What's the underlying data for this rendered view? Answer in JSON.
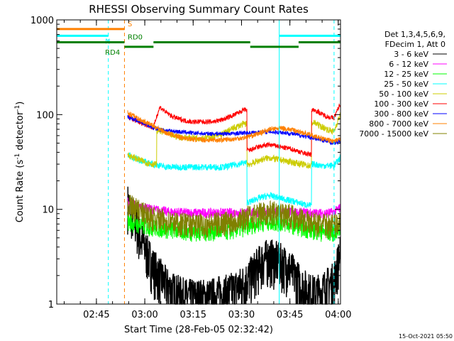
{
  "chart_data": {
    "type": "line",
    "title": "RHESSI Observing Summary Count Rates",
    "xlabel": "Start Time (28-Feb-05 02:32:42)",
    "ylabel_main": "Count Rate (s",
    "ylabel_sup1": "-1",
    "ylabel_mid": " detector",
    "ylabel_sup2": "-1",
    "ylabel_end": ")",
    "yscale": "log",
    "ylim": [
      1,
      1000
    ],
    "xlim_minutes": [
      0,
      88
    ],
    "x_unit": "minutes after 02:32:42",
    "x_ticks": [
      {
        "label": "02:45",
        "value": 12.3
      },
      {
        "label": "03:00",
        "value": 27.3
      },
      {
        "label": "03:15",
        "value": 42.3
      },
      {
        "label": "03:30",
        "value": 57.3
      },
      {
        "label": "03:45",
        "value": 72.3
      },
      {
        "label": "04:00",
        "value": 87.3
      }
    ],
    "y_ticks": [
      {
        "label": "1",
        "value": 1
      },
      {
        "label": "10",
        "value": 10
      },
      {
        "label": "100",
        "value": 100
      },
      {
        "label": "1000",
        "value": 1000
      }
    ],
    "legend_header": [
      "Det 1,3,4,5,6,9,",
      "FDecim 1, Att 0"
    ],
    "series": [
      {
        "name": "3 - 6 keV",
        "color": "#000000",
        "x": [
          22,
          24,
          26,
          28,
          30,
          32,
          34,
          36,
          38,
          40,
          42,
          44,
          46,
          48,
          50,
          52,
          54,
          56,
          58,
          60,
          62,
          64,
          66,
          68,
          70,
          72,
          74,
          76,
          78,
          80,
          82,
          84,
          86,
          88
        ],
        "values": [
          12,
          8,
          5,
          3.5,
          2.5,
          2,
          1.6,
          1.4,
          1.3,
          1.2,
          1.2,
          1.2,
          1.2,
          1.2,
          1.3,
          1.3,
          1.4,
          1.5,
          1.7,
          2.0,
          2.5,
          3.0,
          3.2,
          3.0,
          2.8,
          2.5,
          2.0,
          1.6,
          1.4,
          1.3,
          1.4,
          1.6,
          1.8,
          3.5
        ]
      },
      {
        "name": "6 - 12 keV",
        "color": "#ff00ff",
        "x": [
          22,
          26,
          30,
          34,
          38,
          42,
          46,
          50,
          54,
          58,
          62,
          66,
          70,
          74,
          78,
          82,
          86,
          88
        ],
        "values": [
          12,
          10.5,
          10.0,
          9.5,
          9.3,
          9.2,
          9.2,
          9.2,
          9.2,
          9.3,
          9.3,
          9.4,
          9.4,
          9.3,
          9.2,
          9.1,
          9.3,
          10.5
        ]
      },
      {
        "name": "12 - 25 keV",
        "color": "#00ff00",
        "x": [
          22,
          26,
          30,
          34,
          38,
          42,
          46,
          50,
          54,
          58,
          62,
          66,
          70,
          74,
          78,
          82,
          86,
          88
        ],
        "values": [
          7.5,
          6.8,
          6.5,
          6.2,
          6.0,
          5.8,
          5.8,
          5.9,
          6.0,
          6.5,
          7.2,
          7.5,
          7.3,
          6.8,
          6.2,
          5.8,
          5.8,
          6.2
        ]
      },
      {
        "name": "25 - 50 keV",
        "color": "#00ffff",
        "x": [
          22,
          24,
          26,
          28,
          30,
          32,
          34,
          36,
          38,
          40,
          42,
          44,
          46,
          48,
          50,
          52,
          54,
          56,
          58,
          60,
          62,
          64,
          66,
          68,
          70,
          72,
          74,
          76,
          78,
          80,
          82,
          84,
          86,
          88
        ],
        "values": [
          38,
          35,
          33,
          31,
          30,
          29,
          28,
          28,
          28,
          28,
          28,
          28,
          28,
          28,
          28,
          28,
          29,
          30,
          31,
          12,
          13,
          13.5,
          14,
          13.5,
          13,
          12.5,
          12,
          11.5,
          11,
          30,
          29,
          29,
          29,
          35
        ]
      },
      {
        "name": "50 - 100 keV",
        "color": "#cccc00",
        "x": [
          22,
          24,
          26,
          28,
          30,
          32,
          34,
          36,
          38,
          40,
          42,
          44,
          46,
          48,
          50,
          52,
          54,
          56,
          58,
          60,
          62,
          64,
          66,
          68,
          70,
          72,
          74,
          76,
          78,
          80,
          82,
          84,
          86,
          88
        ],
        "values": [
          38,
          35,
          33,
          31,
          30,
          68,
          64,
          60,
          58,
          57,
          57,
          57,
          57,
          58,
          60,
          64,
          70,
          75,
          80,
          30,
          32,
          34,
          35,
          34,
          33,
          32,
          31,
          30,
          29,
          82,
          75,
          70,
          66,
          100
        ]
      },
      {
        "name": "100 - 300 keV",
        "color": "#ff0000",
        "x": [
          22,
          24,
          26,
          28,
          30,
          32,
          34,
          36,
          38,
          40,
          42,
          44,
          46,
          48,
          50,
          52,
          54,
          56,
          58,
          60,
          62,
          64,
          66,
          68,
          70,
          72,
          74,
          76,
          78,
          80,
          82,
          84,
          86,
          88
        ],
        "values": [
          95,
          88,
          82,
          78,
          72,
          120,
          105,
          95,
          90,
          86,
          84,
          84,
          84,
          84,
          86,
          90,
          96,
          103,
          112,
          42,
          45,
          47,
          48,
          47,
          45,
          44,
          42,
          40,
          38,
          112,
          102,
          95,
          92,
          130
        ]
      },
      {
        "name": "300 - 800 keV",
        "color": "#0000ff",
        "x": [
          22,
          26,
          30,
          34,
          38,
          42,
          46,
          50,
          54,
          58,
          62,
          66,
          70,
          74,
          78,
          82,
          86,
          88
        ],
        "values": [
          95,
          84,
          72,
          68,
          66,
          64,
          63,
          63,
          63,
          64,
          65,
          66,
          65,
          62,
          58,
          54,
          50,
          52
        ]
      },
      {
        "name": "800 - 7000 keV",
        "color": "#ff8000",
        "x": [
          22,
          26,
          30,
          34,
          38,
          42,
          46,
          50,
          54,
          58,
          62,
          66,
          70,
          74,
          78,
          82,
          86,
          88
        ],
        "values": [
          105,
          88,
          76,
          64,
          58,
          55,
          54,
          54,
          55,
          57,
          62,
          70,
          72,
          68,
          62,
          56,
          52,
          55
        ]
      },
      {
        "name": "7000 - 15000 keV",
        "color": "#808000",
        "x": [
          22,
          26,
          30,
          34,
          38,
          42,
          46,
          50,
          54,
          58,
          62,
          66,
          70,
          74,
          78,
          82,
          86,
          88
        ],
        "values": [
          11.5,
          9.5,
          8.2,
          7.6,
          7.2,
          7.0,
          7.0,
          7.2,
          7.6,
          8.2,
          9.0,
          9.5,
          9.2,
          8.5,
          7.5,
          7.0,
          7.0,
          7.5
        ]
      }
    ],
    "event_lines": [
      {
        "x": 0,
        "color": "#00ffff",
        "style": "solid"
      },
      {
        "x": 16,
        "color": "#00ffff",
        "style": "dashed"
      },
      {
        "x": 21,
        "color": "#ff8000",
        "style": "dashed"
      },
      {
        "x": 69,
        "color": "#00ffff",
        "style": "solid"
      },
      {
        "x": 86,
        "color": "#00ffff",
        "style": "dashed"
      }
    ],
    "state_bars": [
      {
        "name": "S",
        "color": "#ff8000",
        "y": 800,
        "segments": [
          [
            0,
            21
          ]
        ],
        "label": "S",
        "label_x": 22
      },
      {
        "name": "N",
        "color": "#00ffff",
        "y": 680,
        "segments": [
          [
            0,
            16
          ],
          [
            69,
            88
          ]
        ],
        "label": "N",
        "label_x": 15
      },
      {
        "name": "RD0",
        "color": "#008000",
        "y": 580,
        "segments": [
          [
            0,
            21
          ],
          [
            30,
            60
          ],
          [
            75,
            88
          ]
        ],
        "label": "RD0",
        "label_x": 22
      },
      {
        "name": "RD4",
        "color": "#008000",
        "y": 520,
        "segments": [
          [
            21,
            30
          ],
          [
            60,
            75
          ]
        ],
        "label": "RD4",
        "label_x": 15
      }
    ]
  },
  "timestamp": "15-Oct-2021 05:50"
}
